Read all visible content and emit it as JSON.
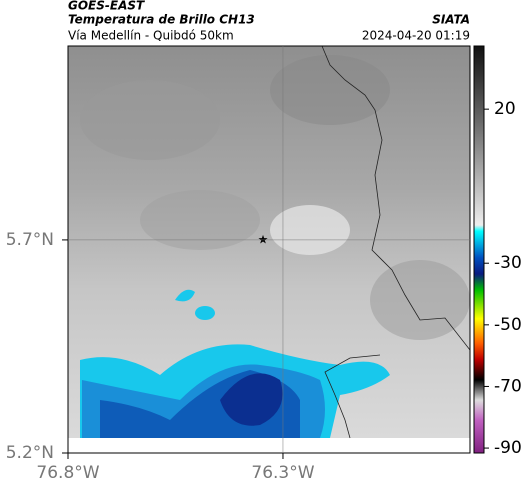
{
  "header": {
    "title": "GOES-EAST",
    "subtitle": "Temperatura de Brillo CH13",
    "route": "Vía Medellín - Quibdó 50km",
    "source": "SIATA",
    "timestamp": "2024-04-20 01:19"
  },
  "map": {
    "latlim": [
      5.2,
      6.155
    ],
    "lonlim": [
      -76.8,
      -75.865
    ],
    "lat_ticks": [
      {
        "value": 5.7,
        "label": "5.7°N"
      },
      {
        "value": 5.2,
        "label": "5.2°N"
      }
    ],
    "lon_ticks": [
      {
        "value": -76.8,
        "label": "76.8°W"
      },
      {
        "value": -76.3,
        "label": "76.3°W"
      }
    ],
    "grid": true
  },
  "colorbar": {
    "lim": [
      -91.6,
      40.5
    ],
    "ticks": [
      20,
      -30,
      -50,
      -70,
      -90
    ]
  }
}
